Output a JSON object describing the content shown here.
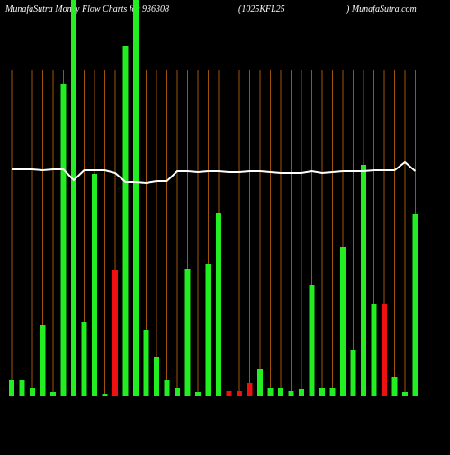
{
  "chart_data": {
    "type": "bar",
    "title_left": "MunafaSutra  Money Flow  Charts for 936308",
    "title_mid": "(1025KFL25",
    "title_right": ") MunafaSutra.com",
    "ylim": [
      0,
      440
    ],
    "values": [
      18,
      18,
      9,
      79,
      5,
      347,
      460,
      83,
      247,
      3,
      140,
      389,
      460,
      74,
      44,
      18,
      9,
      141,
      5,
      147,
      204,
      6,
      6,
      15,
      30,
      9,
      9,
      6,
      8,
      124,
      9,
      9,
      166,
      52,
      257,
      103,
      103,
      22,
      5,
      202
    ],
    "colors": [
      "#22ee22",
      "#22ee22",
      "#22ee22",
      "#22ee22",
      "#22ee22",
      "#22ee22",
      "#22ee22",
      "#22ee22",
      "#22ee22",
      "#22ee22",
      "#ee1111",
      "#22ee22",
      "#22ee22",
      "#22ee22",
      "#22ee22",
      "#22ee22",
      "#22ee22",
      "#22ee22",
      "#22ee22",
      "#22ee22",
      "#22ee22",
      "#ee1111",
      "#ee1111",
      "#ee1111",
      "#22ee22",
      "#22ee22",
      "#22ee22",
      "#22ee22",
      "#22ee22",
      "#22ee22",
      "#22ee22",
      "#22ee22",
      "#22ee22",
      "#22ee22",
      "#22ee22",
      "#22ee22",
      "#ee1111",
      "#22ee22",
      "#22ee22",
      "#22ee22"
    ],
    "line_values": [
      252,
      252,
      252,
      251,
      252,
      252,
      240,
      251,
      251,
      251,
      248,
      238,
      238,
      237,
      239,
      239,
      250,
      250,
      249,
      250,
      250,
      249,
      249,
      250,
      250,
      249,
      248,
      248,
      248,
      250,
      248,
      249,
      250,
      250,
      250,
      251,
      251,
      251,
      260,
      250
    ],
    "line_color": "#ffffff",
    "gridline_color": "#a0520a"
  }
}
